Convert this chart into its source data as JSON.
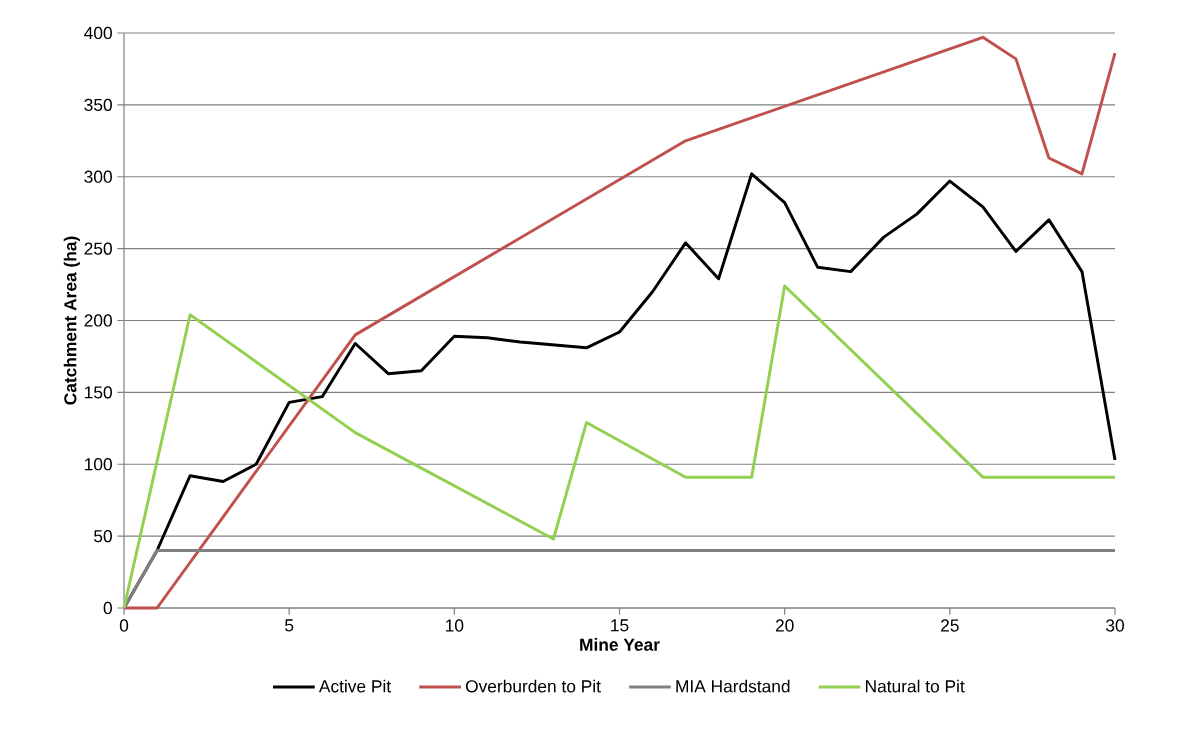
{
  "chart_data": {
    "type": "line",
    "xlabel": "Mine Year",
    "ylabel": "Catchment Area (ha)",
    "xlim": [
      0,
      30
    ],
    "xticks": [
      0,
      5,
      10,
      15,
      20,
      25,
      30
    ],
    "ylim": [
      0,
      400
    ],
    "yticks": [
      0,
      50,
      100,
      150,
      200,
      250,
      300,
      350,
      400
    ],
    "grid": "y",
    "legend": "bottom",
    "marker": "none",
    "line_style": "solid",
    "series": [
      {
        "name": "Active Pit",
        "color": "#000000",
        "x": [
          0,
          1,
          2,
          3,
          4,
          5,
          6,
          7,
          8,
          9,
          10,
          11,
          12,
          13,
          14,
          15,
          16,
          17,
          18,
          19,
          20,
          21,
          22,
          23,
          24,
          25,
          26,
          27,
          28,
          29,
          30
        ],
        "values": [
          0,
          40,
          92,
          88,
          100,
          143,
          147,
          184,
          163,
          165,
          189,
          188,
          185,
          183,
          181,
          192,
          220,
          254,
          229,
          302,
          282,
          237,
          234,
          258,
          274,
          297,
          279,
          248,
          270,
          234,
          103
        ]
      },
      {
        "name": "Overburden to Pit",
        "color": "#c0504d",
        "x": [
          0,
          1,
          7,
          17,
          26,
          27,
          28,
          29,
          30
        ],
        "values": [
          0,
          0,
          190,
          325,
          397,
          382,
          313,
          302,
          386
        ]
      },
      {
        "name": "MIA Hardstand",
        "color": "#808080",
        "x": [
          0,
          1,
          30
        ],
        "values": [
          0,
          40,
          40
        ]
      },
      {
        "name": "Natural to Pit",
        "color": "#92d050",
        "x": [
          0,
          2,
          7,
          13,
          14,
          17,
          19,
          20,
          26,
          30
        ],
        "values": [
          0,
          204,
          122,
          48,
          129,
          91,
          91,
          224,
          91,
          91
        ]
      }
    ]
  }
}
